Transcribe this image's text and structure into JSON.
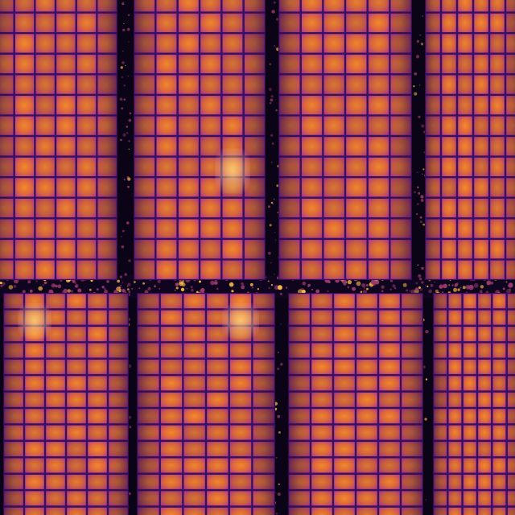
{
  "image": {
    "kind": "thermal-infrared-aerial-photo",
    "subject": "solar-panel-array",
    "palette": {
      "background": "#0b0416",
      "gap_dark": "#10051f",
      "gap_debris": "#9b3a6e",
      "debris_hot": "#f5b84a",
      "cell_cool": "#b8408a",
      "cell_mid": "#e26a3a",
      "cell_warm": "#f28b2a",
      "cell_hot": "#ffd27a",
      "grid_line": "#3a0f5c"
    }
  },
  "array": {
    "panel_rows": 2,
    "panel_columns": 4,
    "cell_columns_per_panel": 6,
    "cell_rows_per_panel": 14,
    "hotspots": [
      {
        "row": 0,
        "col": 1,
        "cell_col": 4,
        "cell_row": 8
      },
      {
        "row": 1,
        "col": 1,
        "cell_col": 4,
        "cell_row": 1
      },
      {
        "row": 1,
        "col": 0,
        "cell_col": 1,
        "cell_row": 1
      }
    ]
  }
}
